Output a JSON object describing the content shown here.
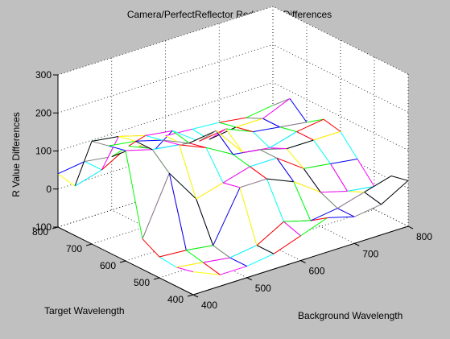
{
  "figure": {
    "title": "Camera/PerfectReflector Red Value Differences",
    "background_color": "#c0c0c0",
    "axes_color": "#ffffff"
  },
  "chart_data": {
    "type": "surface",
    "title": "Camera/PerfectReflector Red Value Differences",
    "xlabel": "Background Wavelength",
    "ylabel": "Target Wavelength",
    "zlabel": "R Value Differences",
    "xlim": [
      400,
      800
    ],
    "ylim": [
      400,
      800
    ],
    "zlim": [
      -100,
      300
    ],
    "x_ticks": [
      "400",
      "500",
      "600",
      "700",
      "800"
    ],
    "y_ticks": [
      "400",
      "500",
      "600",
      "700",
      "800"
    ],
    "z_ticks": [
      "-100",
      "0",
      "100",
      "200",
      "300"
    ],
    "grid": true,
    "mesh_style": "wireframe with per-segment colors",
    "x": [
      400,
      450,
      500,
      550,
      600,
      650,
      700,
      750,
      800
    ],
    "y": [
      400,
      450,
      500,
      550,
      600,
      650,
      700,
      750,
      800
    ],
    "z": [
      [
        -40,
        -70,
        -70,
        -60,
        -35,
        -10,
        -30,
        -20,
        20
      ],
      [
        -50,
        -60,
        -70,
        -60,
        -20,
        -40,
        -30,
        -10,
        10
      ],
      [
        -45,
        -50,
        -60,
        70,
        70,
        40,
        -10,
        -30,
        -40
      ],
      [
        -20,
        130,
        40,
        60,
        80,
        80,
        30,
        20,
        10
      ],
      [
        190,
        170,
        160,
        130,
        90,
        80,
        60,
        60,
        60
      ],
      [
        180,
        170,
        150,
        120,
        130,
        50,
        40,
        60,
        70
      ],
      [
        170,
        160,
        140,
        130,
        80,
        90,
        60,
        50,
        40
      ],
      [
        30,
        50,
        90,
        60,
        50,
        40,
        50,
        50,
        80
      ],
      [
        40,
        50,
        40,
        45,
        50,
        45,
        40,
        30,
        40
      ]
    ],
    "colors": [
      "#ffff00",
      "#ff00ff",
      "#00ffff",
      "#ff0000",
      "#00ff00",
      "#0000ff",
      "#808080",
      "#000000"
    ]
  }
}
